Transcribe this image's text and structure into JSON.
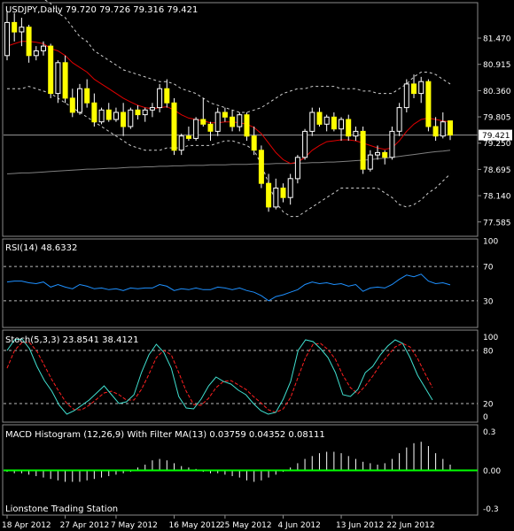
{
  "window": {
    "main_header": "USDJPY,Daily  79.720 79.726 79.316 79.421",
    "watermark": "Lionstone Trading Station"
  },
  "colors": {
    "background": "#000000",
    "frame": "#8a8a8a",
    "text": "#ffffff",
    "candle_body": "#ffff00",
    "ma_red": "#e00000",
    "ma_slow": "#7f7f7f",
    "bands": "#cfcfcf",
    "rsi_line": "#1e90ff",
    "stoch_main": "#40e0d0",
    "stoch_signal": "#ff2020",
    "macd_hist": "#ffffff",
    "macd_zero": "#00ff00"
  },
  "chart_data": [
    {
      "type": "candlestick",
      "title": "USDJPY,Daily  79.720 79.726 79.316 79.421",
      "ylim": [
        77.3,
        82.2
      ],
      "y_ticks": [
        "81.470",
        "80.915",
        "80.360",
        "79.805",
        "79.250",
        "78.695",
        "78.140",
        "77.585"
      ],
      "current_price_label": "79.421",
      "current_price": 79.421,
      "x_labels": [
        "18 Apr 2012",
        "27 Apr 2012",
        "7 May 2012",
        "16 May 2012",
        "25 May 2012",
        "4 Jun 2012",
        "13 Jun 2012",
        "22 Jun 2012"
      ],
      "candles": [
        {
          "o": 81.1,
          "h": 82.05,
          "l": 81.0,
          "c": 81.8
        },
        {
          "o": 81.8,
          "h": 82.0,
          "l": 81.4,
          "c": 81.6
        },
        {
          "o": 81.6,
          "h": 81.9,
          "l": 81.3,
          "c": 81.7
        },
        {
          "o": 81.7,
          "h": 81.75,
          "l": 80.95,
          "c": 81.1
        },
        {
          "o": 81.1,
          "h": 81.3,
          "l": 81.0,
          "c": 81.2
        },
        {
          "o": 81.2,
          "h": 81.4,
          "l": 81.1,
          "c": 81.3
        },
        {
          "o": 81.3,
          "h": 81.35,
          "l": 80.2,
          "c": 80.3
        },
        {
          "o": 80.3,
          "h": 81.0,
          "l": 80.1,
          "c": 80.95
        },
        {
          "o": 80.95,
          "h": 81.1,
          "l": 80.1,
          "c": 80.2
        },
        {
          "o": 80.2,
          "h": 80.4,
          "l": 79.8,
          "c": 79.9
        },
        {
          "o": 79.9,
          "h": 80.5,
          "l": 79.85,
          "c": 80.4
        },
        {
          "o": 80.4,
          "h": 80.6,
          "l": 80.0,
          "c": 80.1
        },
        {
          "o": 80.1,
          "h": 80.3,
          "l": 79.6,
          "c": 79.7
        },
        {
          "o": 79.7,
          "h": 80.0,
          "l": 79.65,
          "c": 79.95
        },
        {
          "o": 79.95,
          "h": 80.1,
          "l": 79.7,
          "c": 79.75
        },
        {
          "o": 79.75,
          "h": 80.0,
          "l": 79.7,
          "c": 79.9
        },
        {
          "o": 79.9,
          "h": 80.1,
          "l": 79.4,
          "c": 79.6
        },
        {
          "o": 79.6,
          "h": 80.0,
          "l": 79.55,
          "c": 79.95
        },
        {
          "o": 79.95,
          "h": 80.05,
          "l": 79.75,
          "c": 79.85
        },
        {
          "o": 79.85,
          "h": 80.0,
          "l": 79.7,
          "c": 79.95
        },
        {
          "o": 79.95,
          "h": 80.1,
          "l": 79.8,
          "c": 80.0
        },
        {
          "o": 80.0,
          "h": 80.5,
          "l": 79.9,
          "c": 80.4
        },
        {
          "o": 80.4,
          "h": 80.6,
          "l": 80.0,
          "c": 80.1
        },
        {
          "o": 80.1,
          "h": 80.2,
          "l": 79.0,
          "c": 79.1
        },
        {
          "o": 79.1,
          "h": 79.45,
          "l": 79.0,
          "c": 79.4
        },
        {
          "o": 79.4,
          "h": 79.6,
          "l": 79.3,
          "c": 79.35
        },
        {
          "o": 79.35,
          "h": 79.8,
          "l": 79.3,
          "c": 79.75
        },
        {
          "o": 79.75,
          "h": 80.2,
          "l": 79.6,
          "c": 79.65
        },
        {
          "o": 79.65,
          "h": 79.7,
          "l": 79.3,
          "c": 79.5
        },
        {
          "o": 79.5,
          "h": 80.0,
          "l": 79.4,
          "c": 79.9
        },
        {
          "o": 79.9,
          "h": 80.0,
          "l": 79.7,
          "c": 79.8
        },
        {
          "o": 79.8,
          "h": 79.95,
          "l": 79.5,
          "c": 79.6
        },
        {
          "o": 79.6,
          "h": 79.9,
          "l": 79.5,
          "c": 79.85
        },
        {
          "o": 79.85,
          "h": 79.9,
          "l": 79.3,
          "c": 79.4
        },
        {
          "o": 79.4,
          "h": 79.6,
          "l": 79.0,
          "c": 79.1
        },
        {
          "o": 79.1,
          "h": 79.2,
          "l": 78.3,
          "c": 78.4
        },
        {
          "o": 78.4,
          "h": 78.6,
          "l": 77.8,
          "c": 77.9
        },
        {
          "o": 77.9,
          "h": 78.5,
          "l": 77.85,
          "c": 78.3
        },
        {
          "o": 78.3,
          "h": 78.4,
          "l": 78.0,
          "c": 78.1
        },
        {
          "o": 78.1,
          "h": 78.6,
          "l": 77.95,
          "c": 78.5
        },
        {
          "o": 78.5,
          "h": 79.0,
          "l": 78.4,
          "c": 78.95
        },
        {
          "o": 78.95,
          "h": 79.55,
          "l": 78.9,
          "c": 79.5
        },
        {
          "o": 79.5,
          "h": 80.0,
          "l": 79.4,
          "c": 79.9
        },
        {
          "o": 79.9,
          "h": 80.0,
          "l": 79.6,
          "c": 79.65
        },
        {
          "o": 79.65,
          "h": 79.85,
          "l": 79.5,
          "c": 79.8
        },
        {
          "o": 79.8,
          "h": 79.9,
          "l": 79.5,
          "c": 79.55
        },
        {
          "o": 79.55,
          "h": 79.8,
          "l": 79.3,
          "c": 79.75
        },
        {
          "o": 79.75,
          "h": 79.85,
          "l": 79.3,
          "c": 79.4
        },
        {
          "o": 79.4,
          "h": 79.6,
          "l": 79.3,
          "c": 79.5
        },
        {
          "o": 79.5,
          "h": 79.6,
          "l": 78.6,
          "c": 78.7
        },
        {
          "o": 78.7,
          "h": 79.1,
          "l": 78.65,
          "c": 79.0
        },
        {
          "o": 79.0,
          "h": 79.2,
          "l": 78.9,
          "c": 79.05
        },
        {
          "o": 79.05,
          "h": 79.1,
          "l": 78.8,
          "c": 78.95
        },
        {
          "o": 78.95,
          "h": 79.6,
          "l": 78.9,
          "c": 79.5
        },
        {
          "o": 79.5,
          "h": 80.1,
          "l": 79.4,
          "c": 80.0
        },
        {
          "o": 80.0,
          "h": 80.6,
          "l": 79.9,
          "c": 80.5
        },
        {
          "o": 80.5,
          "h": 80.7,
          "l": 80.2,
          "c": 80.3
        },
        {
          "o": 80.3,
          "h": 80.65,
          "l": 80.1,
          "c": 80.55
        },
        {
          "o": 80.55,
          "h": 80.6,
          "l": 79.5,
          "c": 79.6
        },
        {
          "o": 79.6,
          "h": 79.8,
          "l": 79.3,
          "c": 79.4
        },
        {
          "o": 79.4,
          "h": 79.9,
          "l": 79.35,
          "c": 79.7
        },
        {
          "o": 79.72,
          "h": 79.726,
          "l": 79.316,
          "c": 79.421
        }
      ],
      "ma_red": [
        81.3,
        81.35,
        81.4,
        81.4,
        81.38,
        81.35,
        81.25,
        81.2,
        81.1,
        80.95,
        80.85,
        80.75,
        80.6,
        80.5,
        80.4,
        80.3,
        80.2,
        80.12,
        80.05,
        80.0,
        79.98,
        80.0,
        80.02,
        79.95,
        79.85,
        79.78,
        79.75,
        79.72,
        79.68,
        79.68,
        79.7,
        79.7,
        79.68,
        79.65,
        79.58,
        79.45,
        79.25,
        79.05,
        78.9,
        78.82,
        78.85,
        78.95,
        79.1,
        79.2,
        79.28,
        79.3,
        79.32,
        79.32,
        79.3,
        79.25,
        79.2,
        79.15,
        79.12,
        79.15,
        79.3,
        79.5,
        79.65,
        79.75,
        79.78,
        79.75,
        79.72,
        79.7
      ],
      "ma_slow": [
        78.6,
        78.61,
        78.62,
        78.62,
        78.63,
        78.64,
        78.65,
        78.66,
        78.67,
        78.68,
        78.69,
        78.7,
        78.7,
        78.71,
        78.72,
        78.72,
        78.73,
        78.74,
        78.74,
        78.75,
        78.75,
        78.76,
        78.76,
        78.77,
        78.77,
        78.78,
        78.78,
        78.78,
        78.79,
        78.79,
        78.79,
        78.8,
        78.8,
        78.8,
        78.81,
        78.81,
        78.81,
        78.82,
        78.82,
        78.82,
        78.83,
        78.83,
        78.84,
        78.84,
        78.85,
        78.85,
        78.86,
        78.87,
        78.88,
        78.89,
        78.9,
        78.92,
        78.93,
        78.95,
        78.97,
        78.99,
        79.01,
        79.03,
        79.05,
        79.07,
        79.08,
        79.1
      ],
      "band_upper": [
        82.6,
        82.6,
        82.6,
        82.5,
        82.4,
        82.3,
        82.2,
        82.0,
        81.9,
        81.7,
        81.5,
        81.4,
        81.2,
        81.1,
        81.0,
        80.9,
        80.8,
        80.75,
        80.7,
        80.65,
        80.6,
        80.55,
        80.55,
        80.5,
        80.4,
        80.35,
        80.3,
        80.2,
        80.1,
        80.05,
        80.0,
        79.95,
        79.9,
        79.9,
        79.95,
        80.0,
        80.1,
        80.2,
        80.3,
        80.35,
        80.4,
        80.4,
        80.45,
        80.45,
        80.45,
        80.45,
        80.4,
        80.4,
        80.4,
        80.35,
        80.35,
        80.3,
        80.3,
        80.3,
        80.4,
        80.5,
        80.65,
        80.75,
        80.75,
        80.7,
        80.6,
        80.5
      ],
      "band_lower": [
        80.4,
        80.4,
        80.4,
        80.45,
        80.4,
        80.35,
        80.3,
        80.2,
        80.1,
        80.0,
        79.9,
        79.8,
        79.7,
        79.6,
        79.5,
        79.4,
        79.3,
        79.2,
        79.15,
        79.1,
        79.1,
        79.1,
        79.15,
        79.15,
        79.15,
        79.2,
        79.2,
        79.2,
        79.2,
        79.25,
        79.3,
        79.3,
        79.25,
        79.2,
        79.1,
        78.8,
        78.4,
        78.0,
        77.8,
        77.7,
        77.7,
        77.8,
        77.9,
        78.0,
        78.1,
        78.2,
        78.3,
        78.3,
        78.3,
        78.3,
        78.3,
        78.3,
        78.2,
        78.1,
        77.95,
        77.9,
        77.95,
        78.05,
        78.2,
        78.3,
        78.45,
        78.6
      ]
    },
    {
      "type": "line",
      "title": "RSI(14) 48.6332",
      "ylim": [
        0,
        100
      ],
      "y_ticks": [
        "100",
        "70",
        "30",
        "0"
      ],
      "tick_values": [
        100,
        70,
        30,
        0
      ],
      "levels": [
        70,
        30
      ],
      "values": [
        52,
        53,
        53,
        51,
        50,
        52,
        46,
        49,
        46,
        44,
        49,
        47,
        44,
        45,
        43,
        44,
        42,
        45,
        44,
        45,
        45,
        49,
        47,
        42,
        44,
        43,
        45,
        43,
        43,
        46,
        45,
        43,
        45,
        42,
        40,
        36,
        30,
        35,
        37,
        40,
        43,
        49,
        52,
        50,
        51,
        49,
        50,
        47,
        49,
        41,
        45,
        46,
        45,
        49,
        55,
        60,
        58,
        61,
        53,
        50,
        51,
        48.6
      ]
    },
    {
      "type": "line",
      "title": "Stoch(5,3,3) 23.8541 38.4121",
      "ylim": [
        0,
        100
      ],
      "y_ticks": [
        "100",
        "80",
        "20",
        "0"
      ],
      "tick_values": [
        100,
        80,
        20,
        0
      ],
      "levels": [
        80,
        20
      ],
      "main": [
        80,
        92,
        93,
        82,
        62,
        46,
        34,
        18,
        8,
        12,
        18,
        24,
        32,
        40,
        30,
        20,
        22,
        30,
        55,
        75,
        87,
        78,
        60,
        28,
        15,
        14,
        25,
        40,
        50,
        45,
        42,
        35,
        30,
        20,
        12,
        8,
        10,
        25,
        45,
        80,
        92,
        90,
        82,
        72,
        55,
        30,
        28,
        36,
        55,
        62,
        75,
        85,
        92,
        88,
        72,
        52,
        38,
        24
      ],
      "signal": [
        60,
        80,
        89,
        89,
        79,
        63,
        47,
        33,
        20,
        13,
        13,
        18,
        25,
        32,
        34,
        30,
        24,
        24,
        36,
        53,
        72,
        80,
        75,
        55,
        34,
        19,
        18,
        26,
        38,
        45,
        46,
        41,
        36,
        28,
        21,
        13,
        10,
        14,
        27,
        50,
        72,
        87,
        88,
        81,
        70,
        52,
        38,
        31,
        40,
        51,
        64,
        74,
        84,
        88,
        84,
        71,
        54,
        38
      ]
    },
    {
      "type": "bar",
      "title": "MACD Histogram (12,26,9) With Filter MA(13) 0.03759 0.04352 0.08111",
      "ylim": [
        -0.3,
        0.3
      ],
      "y_ticks": [
        "0.3",
        "0.00",
        "-0.3"
      ],
      "tick_values": [
        0.3,
        0.0,
        -0.3
      ],
      "values": [
        -0.01,
        -0.02,
        -0.02,
        -0.03,
        -0.04,
        -0.05,
        -0.06,
        -0.07,
        -0.08,
        -0.08,
        -0.08,
        -0.07,
        -0.06,
        -0.05,
        -0.04,
        -0.03,
        -0.02,
        -0.01,
        0.02,
        0.04,
        0.07,
        0.08,
        0.07,
        0.05,
        0.03,
        0.02,
        0.01,
        -0.01,
        -0.02,
        -0.02,
        -0.03,
        -0.04,
        -0.05,
        -0.07,
        -0.08,
        -0.07,
        -0.05,
        -0.03,
        -0.01,
        0.02,
        0.05,
        0.08,
        0.1,
        0.12,
        0.13,
        0.13,
        0.12,
        0.1,
        0.08,
        0.06,
        0.05,
        0.04,
        0.05,
        0.08,
        0.12,
        0.16,
        0.19,
        0.2,
        0.17,
        0.12,
        0.08,
        0.04
      ]
    }
  ]
}
